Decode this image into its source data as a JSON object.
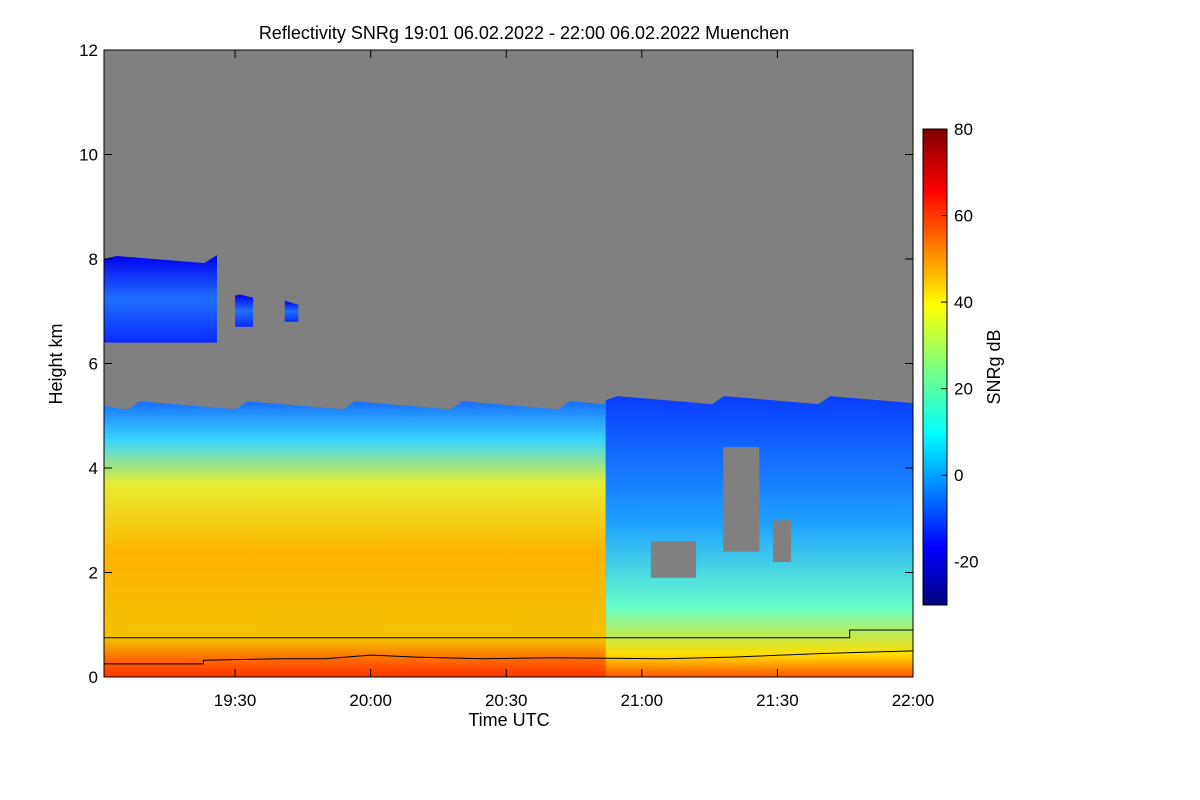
{
  "chart_data": {
    "type": "heatmap",
    "title": "Reflectivity SNRg   19:01 06.02.2022 - 22:00 06.02.2022 Muenchen",
    "xlabel": "Time UTC",
    "ylabel": "Height km",
    "x_range_minutes_utc": [
      1141,
      1320
    ],
    "x_ticks": [
      {
        "label": "19:30",
        "minutes": 1170
      },
      {
        "label": "20:00",
        "minutes": 1200
      },
      {
        "label": "20:30",
        "minutes": 1230
      },
      {
        "label": "21:00",
        "minutes": 1260
      },
      {
        "label": "21:30",
        "minutes": 1290
      },
      {
        "label": "22:00",
        "minutes": 1320
      }
    ],
    "ylim": [
      0,
      12
    ],
    "y_ticks": [
      {
        "label": "0",
        "value": 0
      },
      {
        "label": "2",
        "value": 2
      },
      {
        "label": "4",
        "value": 4
      },
      {
        "label": "6",
        "value": 6
      },
      {
        "label": "8",
        "value": 8
      },
      {
        "label": "10",
        "value": 10
      },
      {
        "label": "12",
        "value": 12
      }
    ],
    "colorbar": {
      "label": "SNRg dB",
      "range": [
        -30,
        80
      ],
      "ticks": [
        {
          "label": "-20",
          "value": -20
        },
        {
          "label": "0",
          "value": 0
        },
        {
          "label": "20",
          "value": 20
        },
        {
          "label": "40",
          "value": 40
        },
        {
          "label": "60",
          "value": 60
        },
        {
          "label": "80",
          "value": 80
        }
      ],
      "colormap": "jet"
    },
    "no_signal_color": "#808080",
    "echo_regions": [
      {
        "x0": 1141,
        "x1": 1166,
        "y_bottom": 6.4,
        "y_top": 8.0,
        "snr_db": -10
      },
      {
        "x0": 1170,
        "x1": 1174,
        "y_bottom": 6.7,
        "y_top": 7.3,
        "snr_db": -12
      },
      {
        "x0": 1181,
        "x1": 1184,
        "y_bottom": 6.8,
        "y_top": 7.2,
        "snr_db": -12
      },
      {
        "x0": 1141,
        "x1": 1252,
        "y_bottom": 0,
        "y_top": 5.2,
        "snr_db": 30
      },
      {
        "x0": 1252,
        "x1": 1320,
        "y_bottom": 0,
        "y_top": 5.3,
        "snr_db": 8
      }
    ],
    "snr_profile_by_height": [
      {
        "height": 0.2,
        "snr_db": 58
      },
      {
        "height": 1.0,
        "snr_db": 40
      },
      {
        "height": 2.5,
        "snr_db": 42
      },
      {
        "height": 4.0,
        "snr_db": 22
      },
      {
        "height": 5.0,
        "snr_db": 5
      }
    ],
    "overlay_lines": [
      {
        "points": [
          [
            1141,
            0.75
          ],
          [
            1306,
            0.75
          ],
          [
            1306,
            0.9
          ],
          [
            1320,
            0.9
          ]
        ]
      },
      {
        "points": [
          [
            1141,
            0.25
          ],
          [
            1163,
            0.25
          ],
          [
            1163,
            0.32
          ],
          [
            1180,
            0.35
          ],
          [
            1190,
            0.35
          ],
          [
            1200,
            0.42
          ],
          [
            1210,
            0.38
          ],
          [
            1225,
            0.35
          ],
          [
            1240,
            0.37
          ],
          [
            1265,
            0.35
          ],
          [
            1280,
            0.38
          ],
          [
            1300,
            0.45
          ],
          [
            1320,
            0.5
          ]
        ]
      }
    ]
  }
}
